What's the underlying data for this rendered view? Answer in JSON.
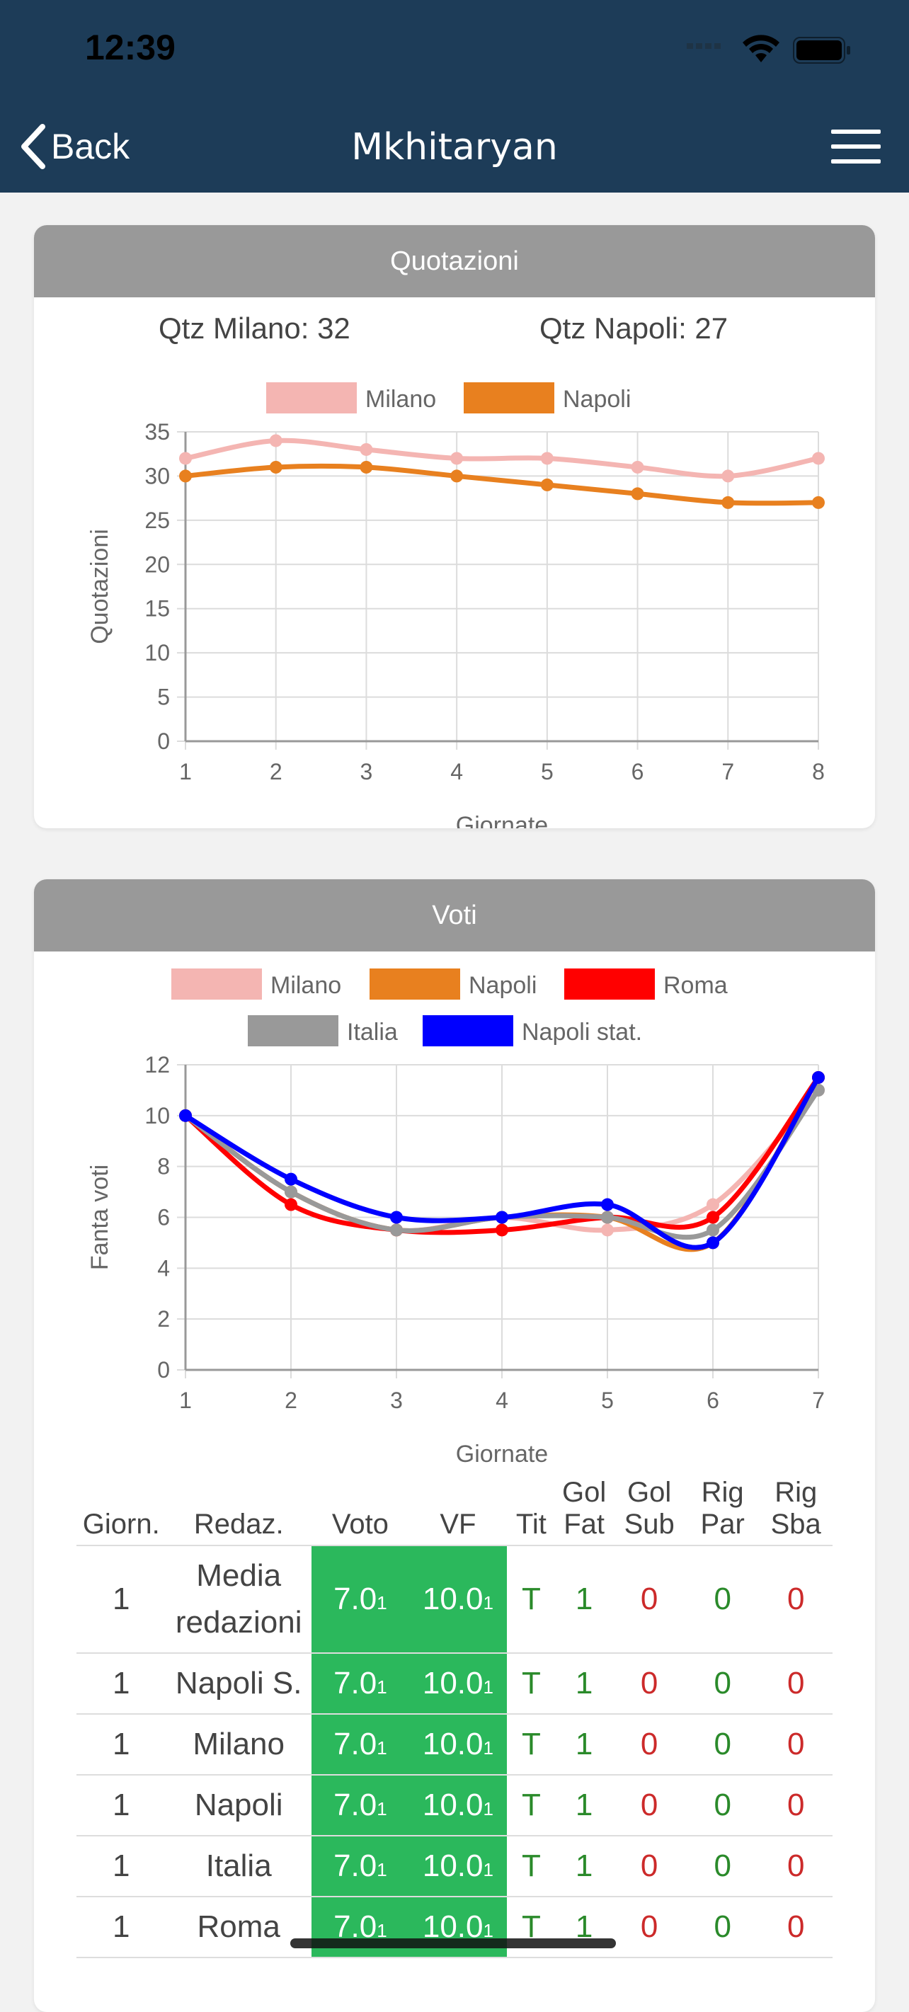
{
  "status": {
    "time": "12:39"
  },
  "nav": {
    "back_label": "Back",
    "title": "Mkhitaryan"
  },
  "quotazioni": {
    "header": "Quotazioni",
    "qtz_milano": "Qtz Milano: 32",
    "qtz_napoli": "Qtz Napoli: 27"
  },
  "voti": {
    "header": "Voti"
  },
  "chart_data": [
    {
      "type": "line",
      "title": "Quotazioni",
      "x": [
        1,
        2,
        3,
        4,
        5,
        6,
        7,
        8
      ],
      "series": [
        {
          "name": "Milano",
          "color": "#f4b5b2",
          "values": [
            32,
            34,
            33,
            32,
            32,
            31,
            30,
            32
          ]
        },
        {
          "name": "Napoli",
          "color": "#e8801f",
          "values": [
            30,
            31,
            31,
            30,
            29,
            28,
            27,
            27
          ]
        }
      ],
      "xlabel": "Giornate",
      "ylabel": "Quotazioni",
      "ylim": [
        0,
        35
      ],
      "yticks": [
        0,
        5,
        10,
        15,
        20,
        25,
        30,
        35
      ],
      "legend": "top"
    },
    {
      "type": "line",
      "title": "Voti",
      "x": [
        1,
        2,
        3,
        4,
        5,
        6,
        7
      ],
      "series": [
        {
          "name": "Milano",
          "color": "#f4b5b2",
          "values": [
            10,
            7,
            5.5,
            6,
            5.5,
            6.5,
            11
          ]
        },
        {
          "name": "Napoli",
          "color": "#e8801f",
          "values": [
            10,
            7,
            5.5,
            6,
            6,
            5,
            11.5
          ]
        },
        {
          "name": "Roma",
          "color": "#ff0000",
          "values": [
            10,
            6.5,
            5.5,
            5.5,
            6,
            6,
            11.5
          ]
        },
        {
          "name": "Italia",
          "color": "#999999",
          "values": [
            10,
            7,
            5.5,
            6,
            6,
            5.5,
            11
          ]
        },
        {
          "name": "Napoli stat.",
          "color": "#0000ff",
          "values": [
            10,
            7.5,
            6,
            6,
            6.5,
            5,
            11.5
          ]
        }
      ],
      "xlabel": "Giornate",
      "ylabel": "Fanta voti",
      "ylim": [
        0,
        12
      ],
      "yticks": [
        0,
        2,
        4,
        6,
        8,
        10,
        12
      ],
      "legend": "top"
    }
  ],
  "table": {
    "headers": [
      "Giorn.",
      "Redaz.",
      "Voto",
      "VF",
      "Tit",
      "Gol Fat",
      "Gol Sub",
      "Rig Par",
      "Rig Sba"
    ],
    "rows": [
      {
        "giorn": "1",
        "redaz": "Media redazioni",
        "voto": "7.0",
        "voto_sub": "1",
        "vf": "10.0",
        "vf_sub": "1",
        "tit": "T",
        "gol_fat": "1",
        "gol_sub": "0",
        "rig_par": "0",
        "rig_sba": "0"
      },
      {
        "giorn": "1",
        "redaz": "Napoli S.",
        "voto": "7.0",
        "voto_sub": "1",
        "vf": "10.0",
        "vf_sub": "1",
        "tit": "T",
        "gol_fat": "1",
        "gol_sub": "0",
        "rig_par": "0",
        "rig_sba": "0"
      },
      {
        "giorn": "1",
        "redaz": "Milano",
        "voto": "7.0",
        "voto_sub": "1",
        "vf": "10.0",
        "vf_sub": "1",
        "tit": "T",
        "gol_fat": "1",
        "gol_sub": "0",
        "rig_par": "0",
        "rig_sba": "0"
      },
      {
        "giorn": "1",
        "redaz": "Napoli",
        "voto": "7.0",
        "voto_sub": "1",
        "vf": "10.0",
        "vf_sub": "1",
        "tit": "T",
        "gol_fat": "1",
        "gol_sub": "0",
        "rig_par": "0",
        "rig_sba": "0"
      },
      {
        "giorn": "1",
        "redaz": "Italia",
        "voto": "7.0",
        "voto_sub": "1",
        "vf": "10.0",
        "vf_sub": "1",
        "tit": "T",
        "gol_fat": "1",
        "gol_sub": "0",
        "rig_par": "0",
        "rig_sba": "0"
      },
      {
        "giorn": "1",
        "redaz": "Roma",
        "voto": "7.0",
        "voto_sub": "1",
        "vf": "10.0",
        "vf_sub": "1",
        "tit": "T",
        "gol_fat": "1",
        "gol_sub": "0",
        "rig_par": "0",
        "rig_sba": "0"
      }
    ]
  }
}
